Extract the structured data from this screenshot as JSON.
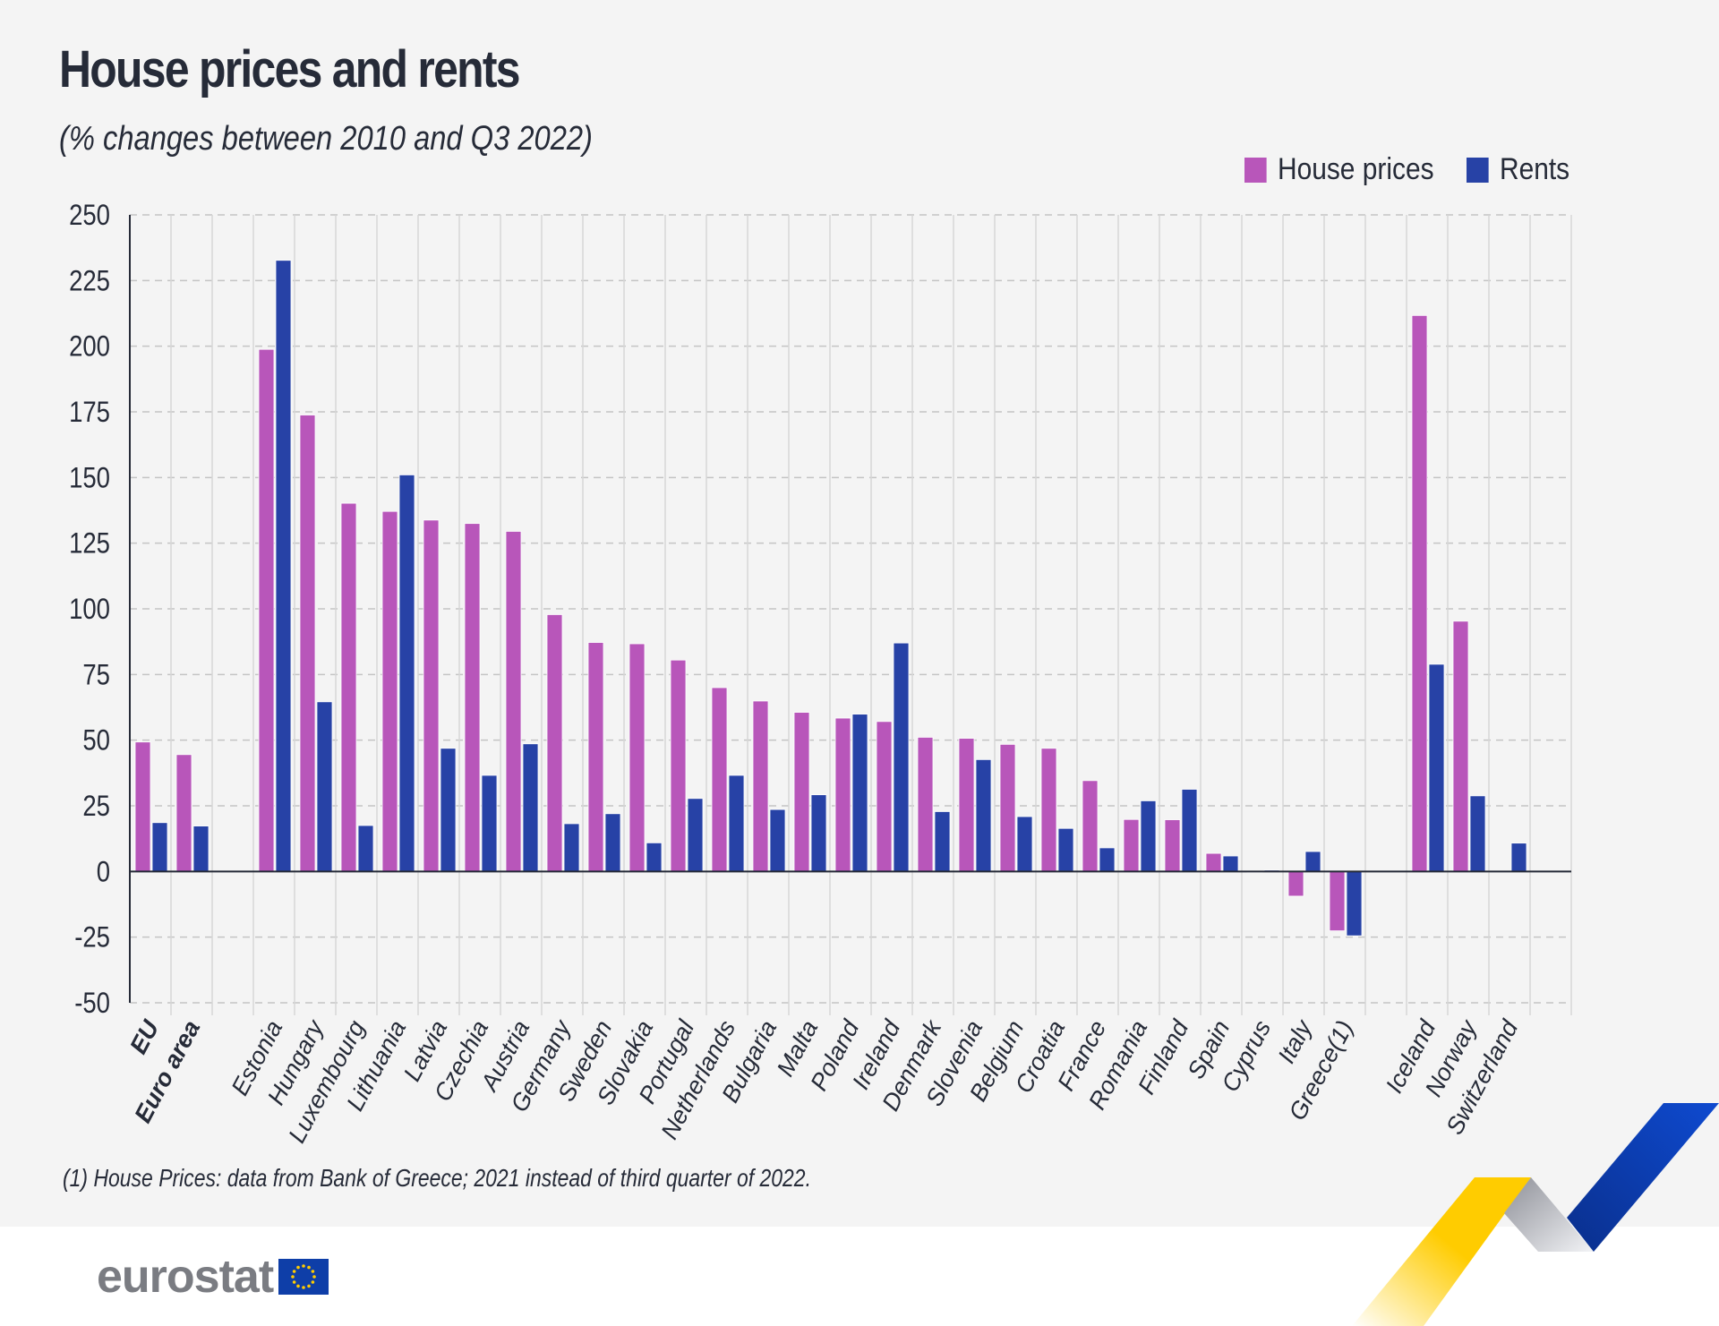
{
  "header": {
    "title": "House prices and rents",
    "subtitle": "(% changes between 2010 and Q3 2022)"
  },
  "legend": [
    {
      "label": "House prices",
      "color": "#b856ba"
    },
    {
      "label": "Rents",
      "color": "#2742a6"
    }
  ],
  "footnote": "(1) House Prices: data from Bank of Greece; 2021 instead of third quarter of 2022.",
  "logo": {
    "text": "eurostat",
    "icon": "eu-flag-icon"
  },
  "chart_data": {
    "type": "bar",
    "title": "House prices and rents",
    "subtitle": "(% changes between 2010 and Q3 2022)",
    "xlabel": "",
    "ylabel": "",
    "ylim": [
      -50,
      250
    ],
    "yticks": [
      250,
      225,
      200,
      175,
      150,
      125,
      100,
      75,
      50,
      25,
      0,
      -25,
      -50
    ],
    "grid": true,
    "legend_position": "top-right",
    "categories": [
      "EU",
      "Euro area",
      "",
      "Estonia",
      "Hungary",
      "Luxembourg",
      "Lithuania",
      "Latvia",
      "Czechia",
      "Austria",
      "Germany",
      "Sweden",
      "Slovakia",
      "Portugal",
      "Netherlands",
      "Bulgaria",
      "Malta",
      "Poland",
      "Ireland",
      "Denmark",
      "Slovenia",
      "Belgium",
      "Croatia",
      "France",
      "Romania",
      "Finland",
      "Spain",
      "Cyprus",
      "Italy",
      "Greece(1)",
      "",
      "Iceland",
      "Norway",
      "Switzerland"
    ],
    "bold_categories": [
      "EU",
      "Euro area"
    ],
    "series": [
      {
        "name": "House prices",
        "color": "#b856ba",
        "values": [
          49.3,
          44.5,
          null,
          198.8,
          173.8,
          140.2,
          137.1,
          133.8,
          132.5,
          129.5,
          97.8,
          87.2,
          86.7,
          80.5,
          70.0,
          64.9,
          60.6,
          58.4,
          57.1,
          51.1,
          50.7,
          48.4,
          46.9,
          34.6,
          19.8,
          19.7,
          6.9,
          -0.3,
          -9.4,
          -22.6,
          null,
          211.7,
          95.3,
          null
        ]
      },
      {
        "name": "Rents",
        "color": "#2742a6",
        "values": [
          18.6,
          17.3,
          null,
          232.7,
          64.6,
          17.5,
          151.0,
          46.9,
          36.6,
          48.6,
          18.2,
          22.0,
          10.9,
          27.8,
          36.6,
          23.6,
          29.2,
          59.9,
          87.0,
          22.8,
          42.6,
          20.9,
          16.4,
          9.0,
          26.9,
          31.3,
          5.9,
          0.5,
          7.6,
          -24.5,
          null,
          78.9,
          28.8,
          10.8
        ]
      }
    ]
  }
}
